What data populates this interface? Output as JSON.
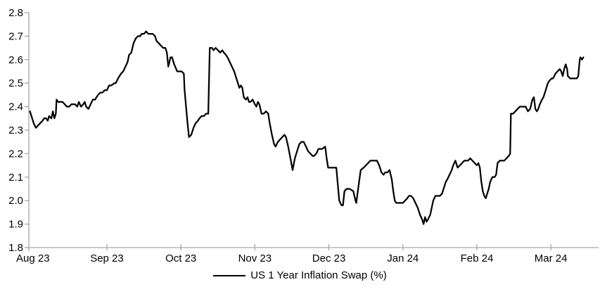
{
  "chart": {
    "background": "#ffffff",
    "axis_color": "#a6a6a6",
    "line_color": "#000000",
    "text_color": "#000000"
  },
  "chart_data": {
    "type": "line",
    "title": "",
    "xlabel": "",
    "ylabel": "",
    "grid": false,
    "legend_position": "bottom-center",
    "x_unit": "months (0 = Aug 23 tick)",
    "xlim": [
      -0.055,
      7.645
    ],
    "ylim": [
      1.8,
      2.8
    ],
    "y_ticks": [
      {
        "v": 1.8,
        "label": "1.8"
      },
      {
        "v": 1.9,
        "label": "1.9"
      },
      {
        "v": 2.0,
        "label": "2.0"
      },
      {
        "v": 2.1,
        "label": "2.1"
      },
      {
        "v": 2.2,
        "label": "2.2"
      },
      {
        "v": 2.3,
        "label": "2.3"
      },
      {
        "v": 2.4,
        "label": "2.4"
      },
      {
        "v": 2.5,
        "label": "2.5"
      },
      {
        "v": 2.6,
        "label": "2.6"
      },
      {
        "v": 2.7,
        "label": "2.7"
      },
      {
        "v": 2.8,
        "label": "2.8"
      }
    ],
    "x_ticks": [
      {
        "t": 0,
        "label": "Aug 23"
      },
      {
        "t": 1,
        "label": "Sep 23"
      },
      {
        "t": 2,
        "label": "Oct 23"
      },
      {
        "t": 3,
        "label": "Nov 23"
      },
      {
        "t": 4,
        "label": "Dec 23"
      },
      {
        "t": 5,
        "label": "Jan 24"
      },
      {
        "t": 6,
        "label": "Feb 24"
      },
      {
        "t": 7,
        "label": "Mar 24"
      }
    ],
    "series": [
      {
        "name": "US 1 Year Inflation Swap (%)",
        "points": [
          [
            -0.04,
            2.38
          ],
          [
            -0.02,
            2.36
          ],
          [
            0.01,
            2.33
          ],
          [
            0.04,
            2.31
          ],
          [
            0.07,
            2.32
          ],
          [
            0.1,
            2.33
          ],
          [
            0.13,
            2.34
          ],
          [
            0.15,
            2.35
          ],
          [
            0.18,
            2.35
          ],
          [
            0.2,
            2.34
          ],
          [
            0.22,
            2.36
          ],
          [
            0.25,
            2.35
          ],
          [
            0.27,
            2.38
          ],
          [
            0.29,
            2.35
          ],
          [
            0.31,
            2.37
          ],
          [
            0.32,
            2.43
          ],
          [
            0.34,
            2.42
          ],
          [
            0.37,
            2.42
          ],
          [
            0.4,
            2.42
          ],
          [
            0.43,
            2.41
          ],
          [
            0.46,
            2.4
          ],
          [
            0.49,
            2.4
          ],
          [
            0.52,
            2.41
          ],
          [
            0.54,
            2.41
          ],
          [
            0.57,
            2.41
          ],
          [
            0.6,
            2.4
          ],
          [
            0.62,
            2.42
          ],
          [
            0.65,
            2.4
          ],
          [
            0.68,
            2.41
          ],
          [
            0.7,
            2.42
          ],
          [
            0.72,
            2.4
          ],
          [
            0.75,
            2.39
          ],
          [
            0.78,
            2.41
          ],
          [
            0.81,
            2.43
          ],
          [
            0.84,
            2.43
          ],
          [
            0.88,
            2.45
          ],
          [
            0.91,
            2.46
          ],
          [
            0.94,
            2.46
          ],
          [
            0.97,
            2.47
          ],
          [
            1.0,
            2.47
          ],
          [
            1.03,
            2.49
          ],
          [
            1.06,
            2.49
          ],
          [
            1.1,
            2.5
          ],
          [
            1.12,
            2.5
          ],
          [
            1.15,
            2.52
          ],
          [
            1.19,
            2.54
          ],
          [
            1.22,
            2.55
          ],
          [
            1.25,
            2.57
          ],
          [
            1.28,
            2.59
          ],
          [
            1.3,
            2.62
          ],
          [
            1.33,
            2.63
          ],
          [
            1.36,
            2.67
          ],
          [
            1.39,
            2.69
          ],
          [
            1.42,
            2.7
          ],
          [
            1.45,
            2.7
          ],
          [
            1.47,
            2.71
          ],
          [
            1.5,
            2.71
          ],
          [
            1.53,
            2.72
          ],
          [
            1.56,
            2.71
          ],
          [
            1.59,
            2.71
          ],
          [
            1.62,
            2.71
          ],
          [
            1.65,
            2.7
          ],
          [
            1.67,
            2.68
          ],
          [
            1.7,
            2.67
          ],
          [
            1.73,
            2.66
          ],
          [
            1.76,
            2.65
          ],
          [
            1.79,
            2.65
          ],
          [
            1.81,
            2.63
          ],
          [
            1.83,
            2.57
          ],
          [
            1.86,
            2.61
          ],
          [
            1.88,
            2.61
          ],
          [
            1.91,
            2.58
          ],
          [
            1.95,
            2.55
          ],
          [
            1.98,
            2.55
          ],
          [
            2.01,
            2.55
          ],
          [
            2.04,
            2.54
          ],
          [
            2.05,
            2.47
          ],
          [
            2.07,
            2.4
          ],
          [
            2.09,
            2.33
          ],
          [
            2.11,
            2.27
          ],
          [
            2.14,
            2.28
          ],
          [
            2.17,
            2.31
          ],
          [
            2.2,
            2.33
          ],
          [
            2.23,
            2.34
          ],
          [
            2.25,
            2.35
          ],
          [
            2.28,
            2.36
          ],
          [
            2.31,
            2.36
          ],
          [
            2.34,
            2.37
          ],
          [
            2.37,
            2.37
          ],
          [
            2.39,
            2.65
          ],
          [
            2.42,
            2.65
          ],
          [
            2.44,
            2.64
          ],
          [
            2.47,
            2.65
          ],
          [
            2.5,
            2.64
          ],
          [
            2.53,
            2.63
          ],
          [
            2.56,
            2.64
          ],
          [
            2.58,
            2.63
          ],
          [
            2.61,
            2.62
          ],
          [
            2.63,
            2.61
          ],
          [
            2.66,
            2.59
          ],
          [
            2.69,
            2.57
          ],
          [
            2.72,
            2.55
          ],
          [
            2.75,
            2.52
          ],
          [
            2.77,
            2.5
          ],
          [
            2.79,
            2.48
          ],
          [
            2.81,
            2.49
          ],
          [
            2.83,
            2.48
          ],
          [
            2.85,
            2.44
          ],
          [
            2.88,
            2.43
          ],
          [
            2.9,
            2.44
          ],
          [
            2.92,
            2.42
          ],
          [
            2.94,
            2.42
          ],
          [
            2.97,
            2.43
          ],
          [
            3.0,
            2.41
          ],
          [
            3.02,
            2.4
          ],
          [
            3.04,
            2.42
          ],
          [
            3.06,
            2.41
          ],
          [
            3.09,
            2.37
          ],
          [
            3.12,
            2.37
          ],
          [
            3.15,
            2.38
          ],
          [
            3.18,
            2.37
          ],
          [
            3.2,
            2.33
          ],
          [
            3.23,
            2.28
          ],
          [
            3.26,
            2.24
          ],
          [
            3.28,
            2.23
          ],
          [
            3.31,
            2.25
          ],
          [
            3.34,
            2.26
          ],
          [
            3.37,
            2.27
          ],
          [
            3.4,
            2.28
          ],
          [
            3.42,
            2.27
          ],
          [
            3.45,
            2.23
          ],
          [
            3.48,
            2.18
          ],
          [
            3.51,
            2.13
          ],
          [
            3.54,
            2.18
          ],
          [
            3.57,
            2.21
          ],
          [
            3.6,
            2.24
          ],
          [
            3.63,
            2.25
          ],
          [
            3.66,
            2.25
          ],
          [
            3.69,
            2.23
          ],
          [
            3.72,
            2.21
          ],
          [
            3.75,
            2.2
          ],
          [
            3.78,
            2.19
          ],
          [
            3.8,
            2.19
          ],
          [
            3.83,
            2.2
          ],
          [
            3.86,
            2.22
          ],
          [
            3.91,
            2.22
          ],
          [
            3.95,
            2.23
          ],
          [
            3.97,
            2.18
          ],
          [
            3.99,
            2.14
          ],
          [
            4.02,
            2.14
          ],
          [
            4.06,
            2.14
          ],
          [
            4.1,
            2.14
          ],
          [
            4.14,
            2.0
          ],
          [
            4.17,
            1.98
          ],
          [
            4.19,
            1.98
          ],
          [
            4.21,
            2.04
          ],
          [
            4.24,
            2.05
          ],
          [
            4.28,
            2.05
          ],
          [
            4.33,
            2.04
          ],
          [
            4.36,
            2.0
          ],
          [
            4.37,
            1.99
          ],
          [
            4.4,
            2.06
          ],
          [
            4.43,
            2.13
          ],
          [
            4.47,
            2.14
          ],
          [
            4.5,
            2.15
          ],
          [
            4.53,
            2.16
          ],
          [
            4.56,
            2.17
          ],
          [
            4.59,
            2.17
          ],
          [
            4.62,
            2.17
          ],
          [
            4.65,
            2.17
          ],
          [
            4.68,
            2.15
          ],
          [
            4.71,
            2.12
          ],
          [
            4.74,
            2.11
          ],
          [
            4.76,
            2.12
          ],
          [
            4.79,
            2.12
          ],
          [
            4.82,
            2.13
          ],
          [
            4.85,
            2.09
          ],
          [
            4.87,
            2.04
          ],
          [
            4.89,
            2.0
          ],
          [
            4.91,
            1.99
          ],
          [
            4.94,
            1.99
          ],
          [
            4.97,
            1.99
          ],
          [
            5.0,
            1.99
          ],
          [
            5.03,
            2.0
          ],
          [
            5.06,
            2.01
          ],
          [
            5.08,
            2.02
          ],
          [
            5.11,
            2.02
          ],
          [
            5.14,
            2.01
          ],
          [
            5.17,
            1.99
          ],
          [
            5.2,
            1.97
          ],
          [
            5.23,
            1.94
          ],
          [
            5.26,
            1.92
          ],
          [
            5.28,
            1.9
          ],
          [
            5.3,
            1.93
          ],
          [
            5.32,
            1.91
          ],
          [
            5.34,
            1.92
          ],
          [
            5.37,
            1.94
          ],
          [
            5.39,
            1.97
          ],
          [
            5.41,
            2.0
          ],
          [
            5.44,
            2.02
          ],
          [
            5.47,
            2.02
          ],
          [
            5.5,
            2.02
          ],
          [
            5.53,
            2.03
          ],
          [
            5.55,
            2.05
          ],
          [
            5.58,
            2.08
          ],
          [
            5.6,
            2.09
          ],
          [
            5.63,
            2.11
          ],
          [
            5.66,
            2.13
          ],
          [
            5.68,
            2.15
          ],
          [
            5.71,
            2.17
          ],
          [
            5.74,
            2.14
          ],
          [
            5.77,
            2.15
          ],
          [
            5.8,
            2.16
          ],
          [
            5.83,
            2.17
          ],
          [
            5.86,
            2.17
          ],
          [
            5.88,
            2.17
          ],
          [
            5.91,
            2.18
          ],
          [
            5.94,
            2.17
          ],
          [
            5.97,
            2.16
          ],
          [
            6.0,
            2.15
          ],
          [
            6.02,
            2.16
          ],
          [
            6.04,
            2.14
          ],
          [
            6.06,
            2.08
          ],
          [
            6.08,
            2.04
          ],
          [
            6.1,
            2.02
          ],
          [
            6.12,
            2.01
          ],
          [
            6.14,
            2.03
          ],
          [
            6.16,
            2.05
          ],
          [
            6.18,
            2.08
          ],
          [
            6.21,
            2.1
          ],
          [
            6.24,
            2.1
          ],
          [
            6.26,
            2.11
          ],
          [
            6.28,
            2.16
          ],
          [
            6.31,
            2.17
          ],
          [
            6.34,
            2.17
          ],
          [
            6.37,
            2.17
          ],
          [
            6.4,
            2.18
          ],
          [
            6.43,
            2.19
          ],
          [
            6.45,
            2.2
          ],
          [
            6.46,
            2.37
          ],
          [
            6.49,
            2.37
          ],
          [
            6.52,
            2.38
          ],
          [
            6.55,
            2.39
          ],
          [
            6.58,
            2.4
          ],
          [
            6.61,
            2.4
          ],
          [
            6.64,
            2.4
          ],
          [
            6.66,
            2.4
          ],
          [
            6.69,
            2.38
          ],
          [
            6.72,
            2.39
          ],
          [
            6.75,
            2.43
          ],
          [
            6.77,
            2.44
          ],
          [
            6.79,
            2.39
          ],
          [
            6.81,
            2.38
          ],
          [
            6.83,
            2.39
          ],
          [
            6.85,
            2.41
          ],
          [
            6.88,
            2.43
          ],
          [
            6.9,
            2.44
          ],
          [
            6.93,
            2.47
          ],
          [
            6.96,
            2.5
          ],
          [
            6.98,
            2.51
          ],
          [
            7.01,
            2.52
          ],
          [
            7.03,
            2.52
          ],
          [
            7.06,
            2.54
          ],
          [
            7.09,
            2.55
          ],
          [
            7.12,
            2.56
          ],
          [
            7.14,
            2.55
          ],
          [
            7.16,
            2.53
          ],
          [
            7.18,
            2.56
          ],
          [
            7.2,
            2.58
          ],
          [
            7.22,
            2.56
          ],
          [
            7.23,
            2.53
          ],
          [
            7.26,
            2.52
          ],
          [
            7.29,
            2.52
          ],
          [
            7.32,
            2.52
          ],
          [
            7.35,
            2.52
          ],
          [
            7.37,
            2.53
          ],
          [
            7.39,
            2.6
          ],
          [
            7.4,
            2.61
          ],
          [
            7.42,
            2.6
          ],
          [
            7.44,
            2.61
          ]
        ]
      }
    ]
  }
}
